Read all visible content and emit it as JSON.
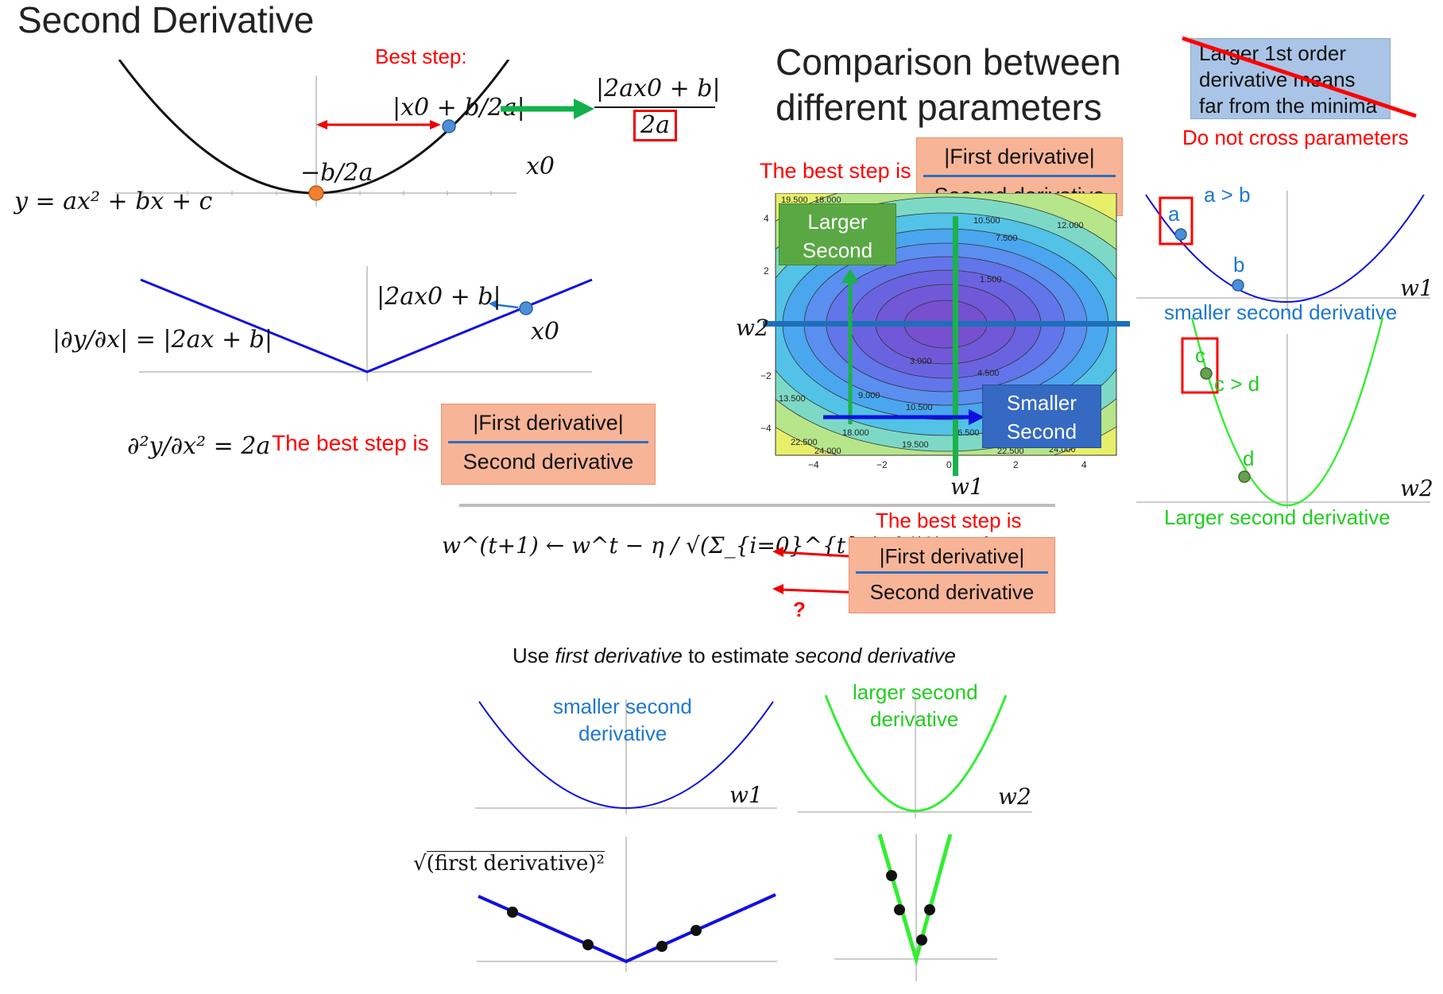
{
  "left": {
    "title": "Second Derivative",
    "best_step_label": "Best step:",
    "step_expr": "|x0 + b/2a|",
    "result_num": "|2ax0 + b|",
    "result_den": "2a",
    "vertex_label": "−b/2a",
    "x0": "x0",
    "quadratic_eq": "y = ax² + bx + c",
    "abs_expr": "|2ax0 + b|",
    "abs_deriv_eq": "|∂y/∂x| = |2ax + b|",
    "second_deriv_eq": "∂²y/∂x² = 2a",
    "best_step_is": "The best step is",
    "frac_num": "|First derivative|",
    "frac_den": "Second derivative"
  },
  "comparison": {
    "title_line1": "Comparison between",
    "title_line2": "different parameters",
    "note": "Larger 1st order derivative means far from the minima",
    "no_cross": "Do not cross parameters",
    "best_step_is": "The best step is",
    "frac_num": "|First derivative|",
    "frac_den": "Second derivative",
    "larger_second": [
      "Larger",
      "Second"
    ],
    "smaller_second": [
      "Smaller",
      "Second"
    ],
    "w1": "w1",
    "w2": "w2",
    "contour_labels": [
      "19.500",
      "18.000",
      "10.500",
      "12.000",
      "7.500",
      "1.500",
      "3.000",
      "4.500",
      "9.000",
      "10.500",
      "13.500",
      "18.000",
      "6.500",
      "22.500",
      "24.000",
      "19.500",
      "22.500",
      "24.000"
    ],
    "x_ticks": [
      "−4",
      "−2",
      "0",
      "2",
      "4"
    ],
    "y_ticks": [
      "4",
      "2",
      "0",
      "−2",
      "−4"
    ]
  },
  "right": {
    "a_gt_b": "a > b",
    "a": "a",
    "b": "b",
    "w1": "w1",
    "smaller": "smaller second derivative",
    "c": "c",
    "c_gt_d": "c > d",
    "d": "d",
    "w2": "w2",
    "larger": "Larger second derivative"
  },
  "bottom": {
    "best_step_is": "The best step is",
    "update_rule": "w^(t+1) ← w^t − η / √(Σ_{i=0}^{t} (g^i)²) · g^t",
    "frac_num": "|First derivative|",
    "frac_den": "Second derivative",
    "question": "?",
    "caption_pre": "Use ",
    "caption_em1": "first derivative",
    "caption_mid": " to estimate ",
    "caption_em2": "second derivative",
    "smaller_l1": "smaller second",
    "smaller_l2": "derivative",
    "larger_l1": "larger second",
    "larger_l2": "derivative",
    "w1": "w1",
    "w2": "w2",
    "sqrt_label": "(first derivative)²"
  },
  "colors": {
    "red": "#ff0000",
    "blue_curve": "#1010e0",
    "green_curve": "#33ee33",
    "arrow_green": "#12b04a",
    "blue_line": "#1f6fb8",
    "frac_fill": "#f8b497",
    "callout_green": "#5aa844",
    "callout_blue": "#3569c2",
    "note_fill": "#a9c4e6"
  }
}
